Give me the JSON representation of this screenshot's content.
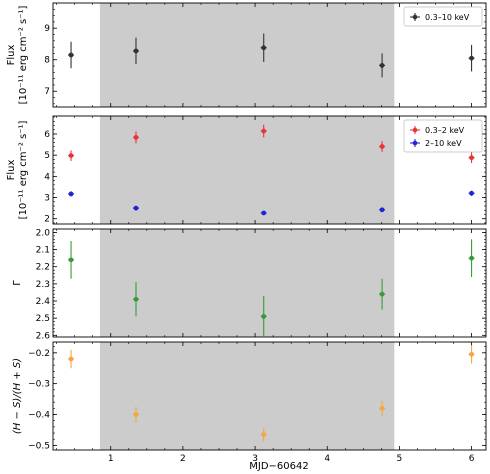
{
  "chart_data": [
    {
      "type": "scatter",
      "x": [
        0.45,
        1.35,
        3.12,
        4.76,
        6.0
      ],
      "series": [
        {
          "name": "0.3–10 keV",
          "color": "#333333",
          "values": [
            8.15,
            8.28,
            8.38,
            7.82,
            8.05
          ],
          "err": [
            0.42,
            0.42,
            0.45,
            0.38,
            0.42
          ]
        }
      ],
      "ylabel_line1": "Flux",
      "ylabel_line2": "[10⁻¹¹ erg cm⁻² s⁻¹]",
      "ylim": [
        6.5,
        9.8
      ],
      "yticks": [
        7,
        8,
        9
      ],
      "ytick_labels": [
        "7",
        "8",
        "9"
      ],
      "legend_position": "top-right"
    },
    {
      "type": "scatter",
      "x": [
        0.45,
        1.35,
        3.12,
        4.76,
        6.0
      ],
      "series": [
        {
          "name": "0.3–2 keV",
          "color": "#e8333a",
          "values": [
            4.98,
            5.84,
            6.14,
            5.41,
            4.88
          ],
          "err": [
            0.25,
            0.28,
            0.3,
            0.25,
            0.25
          ]
        },
        {
          "name": "2–10 keV",
          "color": "#2323d8",
          "values": [
            3.17,
            2.5,
            2.27,
            2.42,
            3.2
          ],
          "err": [
            0.12,
            0.1,
            0.09,
            0.1,
            0.12
          ]
        }
      ],
      "ylabel_line1": "Flux",
      "ylabel_line2": "[10⁻¹¹ erg cm⁻² s⁻¹]",
      "ylim": [
        1.75,
        6.85
      ],
      "yticks": [
        2,
        3,
        4,
        5,
        6
      ],
      "ytick_labels": [
        "2",
        "3",
        "4",
        "5",
        "6"
      ],
      "legend_position": "top-right"
    },
    {
      "type": "scatter",
      "x": [
        0.45,
        1.35,
        3.12,
        4.76,
        6.0
      ],
      "series": [
        {
          "name": "",
          "color": "#3a9a3a",
          "values": [
            2.16,
            2.39,
            2.49,
            2.36,
            2.15
          ],
          "err": [
            0.11,
            0.1,
            0.12,
            0.09,
            0.11
          ]
        }
      ],
      "ylabel_line1": "Γ",
      "ylabel_line2": "",
      "ylim": [
        2.61,
        1.98
      ],
      "inverted": true,
      "yticks": [
        2.0,
        2.1,
        2.2,
        2.3,
        2.4,
        2.5,
        2.6
      ],
      "ytick_labels": [
        "2.0",
        "2.1",
        "2.2",
        "2.3",
        "2.4",
        "2.5",
        "2.6"
      ]
    },
    {
      "type": "scatter",
      "x": [
        0.45,
        1.35,
        3.12,
        4.76,
        6.0
      ],
      "series": [
        {
          "name": "",
          "color": "#f5a640",
          "values": [
            -0.22,
            -0.4,
            -0.465,
            -0.38,
            -0.205
          ],
          "err": [
            0.03,
            0.025,
            0.022,
            0.025,
            0.03
          ]
        }
      ],
      "ylabel_line1": "(H − S)/(H + S)",
      "ylabel_line2": "",
      "ylim": [
        -0.515,
        -0.165
      ],
      "yticks": [
        -0.2,
        -0.3,
        -0.4,
        -0.5
      ],
      "ytick_labels": [
        "−0.2",
        "−0.3",
        "−0.4",
        "−0.5"
      ]
    }
  ],
  "shared_x": {
    "xlabel": "MJD−60642",
    "xlim": [
      0.2,
      6.2
    ],
    "xticks": [
      1,
      2,
      3,
      4,
      5,
      6
    ],
    "xtick_labels": [
      "1",
      "2",
      "3",
      "4",
      "5",
      "6"
    ],
    "shaded_region": [
      0.85,
      4.93
    ],
    "shade_color": "#cccccc"
  }
}
